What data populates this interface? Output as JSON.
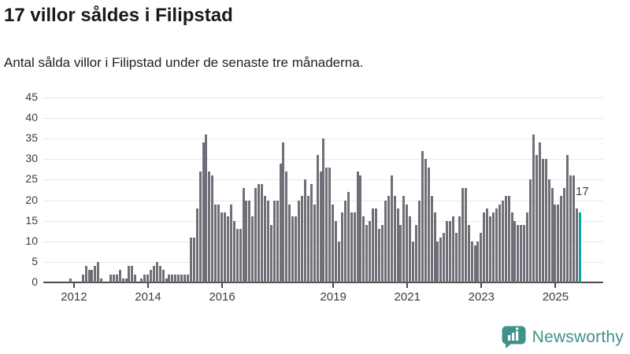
{
  "title": "17 villor såldes i Filipstad",
  "subtitle": "Antal sålda villor i Filipstad under de senaste tre månaderna.",
  "chart_data": {
    "type": "bar",
    "values": [
      1,
      0,
      0,
      0,
      2,
      4,
      3,
      3,
      4,
      5,
      1,
      0,
      0,
      2,
      2,
      2,
      3,
      1,
      1,
      4,
      4,
      2,
      0,
      1,
      2,
      2,
      3,
      4,
      5,
      4,
      3,
      1,
      2,
      2,
      2,
      2,
      2,
      2,
      2,
      11,
      11,
      18,
      27,
      34,
      36,
      27,
      26,
      19,
      19,
      17,
      17,
      16,
      19,
      15,
      13,
      13,
      23,
      20,
      20,
      16,
      23,
      24,
      24,
      21,
      20,
      14,
      20,
      20,
      29,
      34,
      27,
      19,
      16,
      16,
      20,
      21,
      25,
      21,
      24,
      19,
      31,
      27,
      35,
      28,
      28,
      19,
      15,
      10,
      17,
      20,
      22,
      17,
      17,
      27,
      26,
      16,
      14,
      15,
      18,
      18,
      13,
      14,
      20,
      21,
      26,
      21,
      18,
      14,
      21,
      19,
      16,
      10,
      14,
      20,
      32,
      30,
      28,
      21,
      17,
      10,
      11,
      12,
      15,
      15,
      16,
      12,
      16,
      23,
      23,
      14,
      10,
      9,
      10,
      12,
      17,
      18,
      16,
      17,
      18,
      19,
      20,
      21,
      21,
      17,
      15,
      14,
      14,
      14,
      17,
      25,
      36,
      31,
      34,
      30,
      30,
      25,
      23,
      19,
      19,
      21,
      23,
      31,
      26,
      26,
      18,
      17
    ],
    "highlight_last_bar": true,
    "highlight_value_label": "17",
    "bar_color": "#706f78",
    "highlight_color": "#0fa3a1",
    "y_ticks": [
      0,
      5,
      10,
      15,
      20,
      25,
      30,
      35,
      40,
      45
    ],
    "ylim": [
      0,
      45
    ],
    "x_tick_labels": [
      "2012",
      "2014",
      "2016",
      "2019",
      "2021",
      "2023",
      "2025"
    ],
    "x_tick_indices": [
      1,
      25,
      49,
      85,
      109,
      133,
      157
    ],
    "grid": true,
    "legend": "none"
  },
  "footer": {
    "brand": "Newsworthy"
  }
}
